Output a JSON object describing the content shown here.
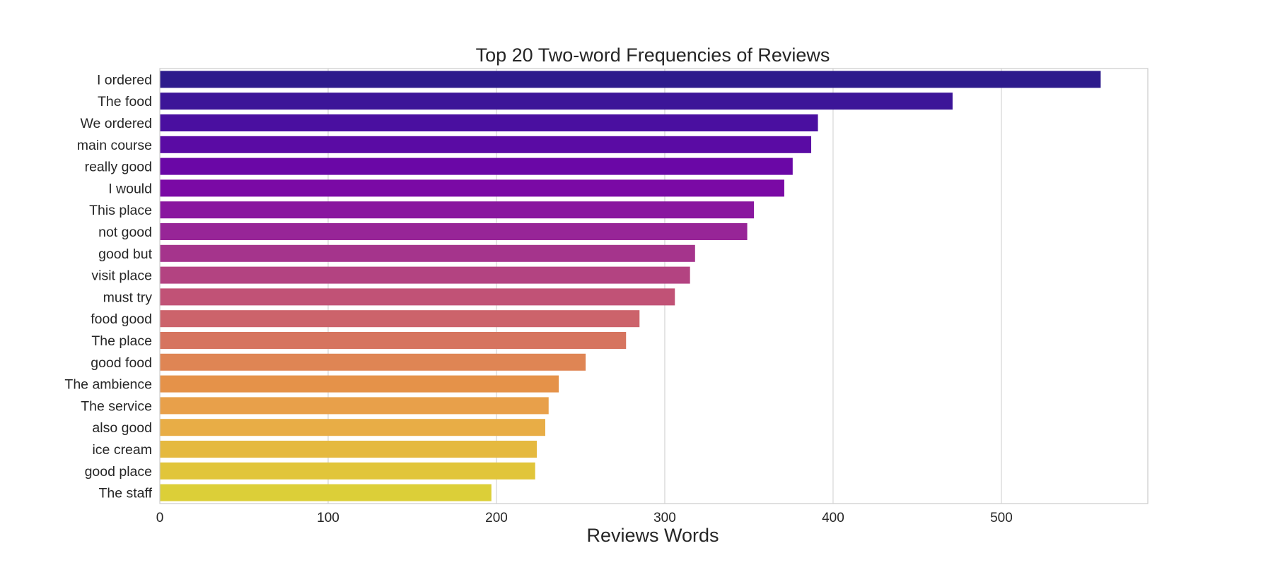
{
  "chart_data": {
    "type": "bar",
    "orientation": "horizontal",
    "title": "Top 20 Two-word Frequencies of Reviews",
    "xlabel": "Reviews Words",
    "ylabel": "",
    "categories": [
      "I ordered",
      "The food",
      "We ordered",
      "main course",
      "really good",
      "I would",
      "This place",
      "not good",
      "good but",
      "visit place",
      "must try",
      "food good",
      "The place",
      "good food",
      "The ambience",
      "The service",
      "also good",
      "ice cream",
      "good place",
      "The staff"
    ],
    "values": [
      559,
      471,
      391,
      387,
      376,
      371,
      353,
      349,
      318,
      315,
      306,
      285,
      277,
      253,
      237,
      231,
      229,
      224,
      223,
      197
    ],
    "xlim": [
      0,
      587
    ],
    "xticks": [
      0,
      100,
      200,
      300,
      400,
      500
    ],
    "grid": "vertical",
    "palette": "plasma",
    "colors": [
      "#2d1b8c",
      "#3c1598",
      "#4a0fa0",
      "#5a0ba4",
      "#6a07a6",
      "#7a09a5",
      "#89179f",
      "#972597",
      "#a5348c",
      "#b34381",
      "#c15276",
      "#cc636b",
      "#d6745f",
      "#df8554",
      "#e59249",
      "#e8a04a",
      "#e8ad46",
      "#e5b93f",
      "#e1c53a",
      "#dccf38"
    ]
  }
}
